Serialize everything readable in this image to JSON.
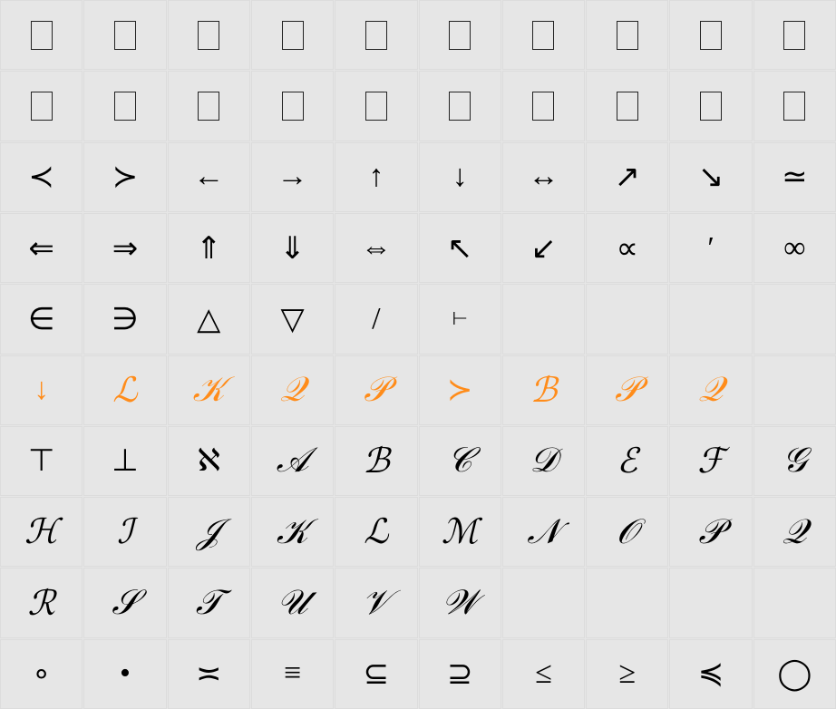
{
  "grid": {
    "cols": 10,
    "rows": 10,
    "highlight_color": "#ff8c1a",
    "text_color": "#000000",
    "bg_color": "#e6e6e6",
    "cells": [
      [
        {
          "kind": "placeholder",
          "name": "glyph-0-0"
        },
        {
          "kind": "placeholder",
          "name": "glyph-0-1"
        },
        {
          "kind": "placeholder",
          "name": "glyph-0-2"
        },
        {
          "kind": "placeholder",
          "name": "glyph-0-3"
        },
        {
          "kind": "placeholder",
          "name": "glyph-0-4"
        },
        {
          "kind": "placeholder",
          "name": "glyph-0-5"
        },
        {
          "kind": "placeholder",
          "name": "glyph-0-6"
        },
        {
          "kind": "placeholder",
          "name": "glyph-0-7"
        },
        {
          "kind": "placeholder",
          "name": "glyph-0-8"
        },
        {
          "kind": "placeholder",
          "name": "glyph-0-9"
        }
      ],
      [
        {
          "kind": "placeholder",
          "name": "glyph-1-0"
        },
        {
          "kind": "placeholder",
          "name": "glyph-1-1"
        },
        {
          "kind": "placeholder",
          "name": "glyph-1-2"
        },
        {
          "kind": "placeholder",
          "name": "glyph-1-3"
        },
        {
          "kind": "placeholder",
          "name": "glyph-1-4"
        },
        {
          "kind": "placeholder",
          "name": "glyph-1-5"
        },
        {
          "kind": "placeholder",
          "name": "glyph-1-6"
        },
        {
          "kind": "placeholder",
          "name": "glyph-1-7"
        },
        {
          "kind": "placeholder",
          "name": "glyph-1-8"
        },
        {
          "kind": "placeholder",
          "name": "glyph-1-9"
        }
      ],
      [
        {
          "kind": "glyph",
          "text": "≺",
          "name": "prec"
        },
        {
          "kind": "glyph",
          "text": "≻",
          "name": "succ"
        },
        {
          "kind": "glyph",
          "text": "←",
          "name": "leftarrow"
        },
        {
          "kind": "glyph",
          "text": "→",
          "name": "rightarrow"
        },
        {
          "kind": "glyph",
          "text": "↑",
          "name": "uparrow"
        },
        {
          "kind": "glyph",
          "text": "↓",
          "name": "downarrow"
        },
        {
          "kind": "glyph",
          "text": "↔",
          "name": "leftrightarrow"
        },
        {
          "kind": "glyph",
          "text": "↗",
          "name": "nearrow"
        },
        {
          "kind": "glyph",
          "text": "↘",
          "name": "searrow"
        },
        {
          "kind": "glyph",
          "text": "≃",
          "name": "simeq"
        }
      ],
      [
        {
          "kind": "glyph",
          "text": "⇐",
          "name": "Leftarrow"
        },
        {
          "kind": "glyph",
          "text": "⇒",
          "name": "Rightarrow"
        },
        {
          "kind": "glyph",
          "text": "⇑",
          "name": "Uparrow"
        },
        {
          "kind": "glyph",
          "text": "⇓",
          "name": "Downarrow"
        },
        {
          "kind": "glyph",
          "text": "⇔",
          "name": "Leftrightarrow"
        },
        {
          "kind": "glyph",
          "text": "↖",
          "name": "nwarrow"
        },
        {
          "kind": "glyph",
          "text": "↙",
          "name": "swarrow"
        },
        {
          "kind": "glyph",
          "text": "∝",
          "name": "propto"
        },
        {
          "kind": "glyph",
          "text": "′",
          "name": "prime"
        },
        {
          "kind": "glyph",
          "text": "∞",
          "name": "infty"
        }
      ],
      [
        {
          "kind": "glyph",
          "text": "∈",
          "name": "in"
        },
        {
          "kind": "glyph",
          "text": "∋",
          "name": "ni"
        },
        {
          "kind": "glyph",
          "text": "△",
          "name": "bigtriangleup"
        },
        {
          "kind": "glyph",
          "text": "▽",
          "name": "bigtriangledown"
        },
        {
          "kind": "glyph",
          "text": "/",
          "name": "slash"
        },
        {
          "kind": "glyph",
          "text": "⊢",
          "name": "vdash",
          "fontsize": 20
        },
        {
          "kind": "empty"
        },
        {
          "kind": "empty"
        },
        {
          "kind": "empty"
        },
        {
          "kind": "empty"
        }
      ],
      [
        {
          "kind": "glyph",
          "text": "↓",
          "name": "hl-downarrow",
          "hi": true
        },
        {
          "kind": "script",
          "text": "ℒ",
          "name": "scr-L",
          "hi": true
        },
        {
          "kind": "script",
          "text": "𝒦",
          "name": "scr-K",
          "hi": true
        },
        {
          "kind": "script",
          "text": "𝒬",
          "name": "scr-Q",
          "hi": true
        },
        {
          "kind": "script",
          "text": "𝒫",
          "name": "scr-P",
          "hi": true
        },
        {
          "kind": "glyph",
          "text": "≻",
          "name": "hl-succ",
          "hi": true
        },
        {
          "kind": "script",
          "text": "ℬ",
          "name": "scr-B",
          "hi": true
        },
        {
          "kind": "script",
          "text": "𝒫",
          "name": "scr-P2",
          "hi": true
        },
        {
          "kind": "script",
          "text": "𝒬",
          "name": "scr-Q2",
          "hi": true
        },
        {
          "kind": "empty"
        }
      ],
      [
        {
          "kind": "glyph",
          "text": "⊤",
          "name": "top"
        },
        {
          "kind": "glyph",
          "text": "⊥",
          "name": "bot"
        },
        {
          "kind": "glyph",
          "text": "ℵ",
          "name": "aleph"
        },
        {
          "kind": "script",
          "text": "𝒜",
          "name": "cal-A"
        },
        {
          "kind": "script",
          "text": "ℬ",
          "name": "cal-B"
        },
        {
          "kind": "script",
          "text": "𝒞",
          "name": "cal-C"
        },
        {
          "kind": "script",
          "text": "𝒟",
          "name": "cal-D"
        },
        {
          "kind": "script",
          "text": "ℰ",
          "name": "cal-E"
        },
        {
          "kind": "script",
          "text": "ℱ",
          "name": "cal-F"
        },
        {
          "kind": "script",
          "text": "𝒢",
          "name": "cal-G"
        }
      ],
      [
        {
          "kind": "script",
          "text": "ℋ",
          "name": "cal-H"
        },
        {
          "kind": "script",
          "text": "ℐ",
          "name": "cal-I"
        },
        {
          "kind": "script",
          "text": "𝒥",
          "name": "cal-J"
        },
        {
          "kind": "script",
          "text": "𝒦",
          "name": "cal-K"
        },
        {
          "kind": "script",
          "text": "ℒ",
          "name": "cal-L"
        },
        {
          "kind": "script",
          "text": "ℳ",
          "name": "cal-M"
        },
        {
          "kind": "script",
          "text": "𝒩",
          "name": "cal-N"
        },
        {
          "kind": "script",
          "text": "𝒪",
          "name": "cal-O"
        },
        {
          "kind": "script",
          "text": "𝒫",
          "name": "cal-P"
        },
        {
          "kind": "script",
          "text": "𝒬",
          "name": "cal-Q"
        }
      ],
      [
        {
          "kind": "script",
          "text": "ℛ",
          "name": "cal-R"
        },
        {
          "kind": "script",
          "text": "𝒮",
          "name": "cal-S"
        },
        {
          "kind": "script",
          "text": "𝒯",
          "name": "cal-T"
        },
        {
          "kind": "script",
          "text": "𝒰",
          "name": "cal-U"
        },
        {
          "kind": "script",
          "text": "𝒱",
          "name": "cal-V"
        },
        {
          "kind": "script",
          "text": "𝒲",
          "name": "cal-W"
        },
        {
          "kind": "empty"
        },
        {
          "kind": "empty"
        },
        {
          "kind": "empty"
        },
        {
          "kind": "empty"
        }
      ],
      [
        {
          "kind": "glyph",
          "text": "∘",
          "name": "circ"
        },
        {
          "kind": "glyph",
          "text": "•",
          "name": "bullet"
        },
        {
          "kind": "glyph",
          "text": "≍",
          "name": "asymp"
        },
        {
          "kind": "glyph",
          "text": "≡",
          "name": "equiv"
        },
        {
          "kind": "glyph",
          "text": "⊆",
          "name": "subseteq"
        },
        {
          "kind": "glyph",
          "text": "⊇",
          "name": "supseteq"
        },
        {
          "kind": "glyph",
          "text": "≤",
          "name": "leq"
        },
        {
          "kind": "glyph",
          "text": "≥",
          "name": "geq"
        },
        {
          "kind": "glyph",
          "text": "≼",
          "name": "preceq"
        },
        {
          "kind": "glyph",
          "text": "◯",
          "name": "bigcirc"
        }
      ]
    ]
  }
}
